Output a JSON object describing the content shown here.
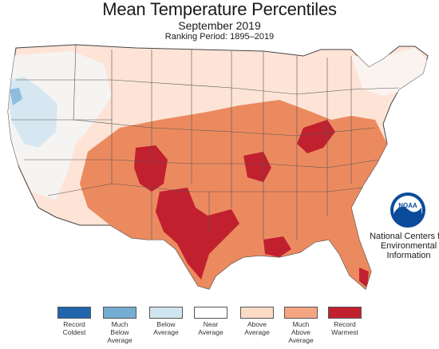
{
  "title": "Mean Temperature Percentiles",
  "subtitle": "September 2019",
  "period": "Ranking Period: 1895–2019",
  "credit": [
    "National Centers for",
    "Environmental",
    "Information"
  ],
  "logo_text": "NOAA",
  "colors": {
    "record_coldest": "#2166ac",
    "much_below": "#74add1",
    "below": "#d1e5f0",
    "near": "#ffffff",
    "above": "#fddbc7",
    "much_above": "#f4a582",
    "record_warmest": "#b2182b",
    "much_above_map": "#ec8a5f",
    "record_warmest_map": "#c1202f"
  },
  "legend": [
    {
      "lines": [
        "Record",
        "Coldest"
      ],
      "color": "#2166ac"
    },
    {
      "lines": [
        "Much",
        "Below",
        "Average"
      ],
      "color": "#74add1"
    },
    {
      "lines": [
        "Below",
        "Average"
      ],
      "color": "#d1e5f0"
    },
    {
      "lines": [
        "Near",
        "Average"
      ],
      "color": "#ffffff"
    },
    {
      "lines": [
        "Above",
        "Average"
      ],
      "color": "#fddbc7"
    },
    {
      "lines": [
        "Much",
        "Above",
        "Average"
      ],
      "color": "#f4a582"
    },
    {
      "lines": [
        "Record",
        "Warmest"
      ],
      "color": "#c1202f"
    }
  ]
}
